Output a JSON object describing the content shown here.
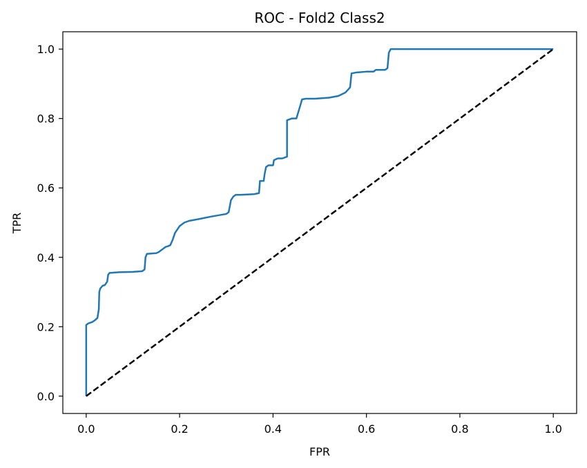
{
  "chart_data": {
    "type": "line",
    "title": "ROC - Fold2 Class2",
    "xlabel": "FPR",
    "ylabel": "TPR",
    "xlim": [
      -0.05,
      1.05
    ],
    "ylim": [
      -0.05,
      1.05
    ],
    "xticks": [
      0.0,
      0.2,
      0.4,
      0.6,
      0.8,
      1.0
    ],
    "xtick_labels": [
      "0.0",
      "0.2",
      "0.4",
      "0.6",
      "0.8",
      "1.0"
    ],
    "yticks": [
      0.0,
      0.2,
      0.4,
      0.6,
      0.8,
      1.0
    ],
    "ytick_labels": [
      "0.0",
      "0.2",
      "0.4",
      "0.6",
      "0.8",
      "1.0"
    ],
    "grid": false,
    "series": [
      {
        "role": "roc",
        "color": "#1f77b4",
        "style": "solid",
        "x": [
          0.0,
          0.0,
          0.0,
          0.005,
          0.012,
          0.018,
          0.024,
          0.027,
          0.028,
          0.03,
          0.035,
          0.04,
          0.045,
          0.047,
          0.05,
          0.07,
          0.1,
          0.12,
          0.125,
          0.127,
          0.13,
          0.15,
          0.155,
          0.16,
          0.165,
          0.17,
          0.175,
          0.18,
          0.185,
          0.19,
          0.2,
          0.21,
          0.22,
          0.24,
          0.27,
          0.3,
          0.305,
          0.31,
          0.315,
          0.32,
          0.33,
          0.36,
          0.37,
          0.372,
          0.38,
          0.382,
          0.385,
          0.39,
          0.4,
          0.402,
          0.41,
          0.42,
          0.43,
          0.43,
          0.44,
          0.45,
          0.46,
          0.462,
          0.47,
          0.49,
          0.52,
          0.54,
          0.555,
          0.562,
          0.565,
          0.568,
          0.58,
          0.6,
          0.615,
          0.62,
          0.64,
          0.645,
          0.648,
          0.652,
          0.66,
          0.7,
          0.8,
          1.0
        ],
        "y": [
          0.0,
          0.2,
          0.205,
          0.21,
          0.213,
          0.218,
          0.225,
          0.25,
          0.3,
          0.31,
          0.318,
          0.32,
          0.33,
          0.35,
          0.355,
          0.357,
          0.358,
          0.36,
          0.365,
          0.4,
          0.41,
          0.412,
          0.415,
          0.42,
          0.425,
          0.43,
          0.432,
          0.435,
          0.45,
          0.47,
          0.49,
          0.5,
          0.505,
          0.51,
          0.518,
          0.525,
          0.53,
          0.565,
          0.575,
          0.58,
          0.58,
          0.582,
          0.585,
          0.62,
          0.62,
          0.64,
          0.66,
          0.665,
          0.665,
          0.68,
          0.685,
          0.685,
          0.69,
          0.795,
          0.8,
          0.8,
          0.845,
          0.855,
          0.857,
          0.857,
          0.86,
          0.865,
          0.875,
          0.885,
          0.89,
          0.93,
          0.933,
          0.935,
          0.935,
          0.94,
          0.94,
          0.945,
          0.99,
          1.0,
          1.0,
          1.0,
          1.0,
          1.0
        ]
      },
      {
        "role": "chance",
        "color": "#000000",
        "style": "dashed",
        "x": [
          0.0,
          1.0
        ],
        "y": [
          0.0,
          1.0
        ]
      }
    ]
  }
}
